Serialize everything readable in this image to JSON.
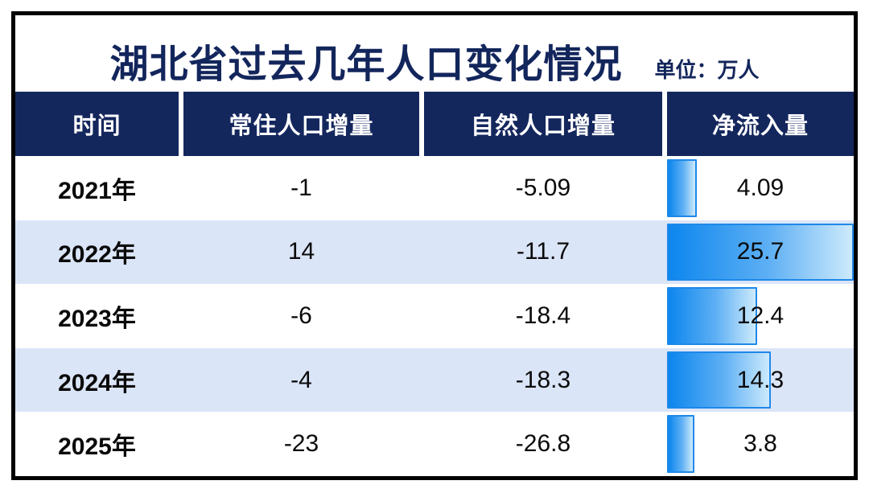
{
  "header": {
    "title": "湖北省过去几年人口变化情况",
    "unit_label": "单位：万人"
  },
  "table": {
    "columns": [
      "时间",
      "常住人口增量",
      "自然人口增量",
      "净流入量"
    ],
    "rows": [
      {
        "year": "2021年",
        "resident": "-1",
        "natural": "-5.09",
        "net": "4.09",
        "net_value": 4.09
      },
      {
        "year": "2022年",
        "resident": "14",
        "natural": "-11.7",
        "net": "25.7",
        "net_value": 25.7
      },
      {
        "year": "2023年",
        "resident": "-6",
        "natural": "-18.4",
        "net": "12.4",
        "net_value": 12.4
      },
      {
        "year": "2024年",
        "resident": "-4",
        "natural": "-18.3",
        "net": "14.3",
        "net_value": 14.3
      },
      {
        "year": "2025年",
        "resident": "-23",
        "natural": "-26.8",
        "net": "3.8",
        "net_value": 3.8
      }
    ]
  },
  "chart_data": {
    "type": "table",
    "title": "湖北省过去几年人口变化情况",
    "unit": "万人",
    "categories": [
      "2021年",
      "2022年",
      "2023年",
      "2024年",
      "2025年"
    ],
    "series": [
      {
        "name": "常住人口增量",
        "values": [
          -1,
          14,
          -6,
          -4,
          -23
        ]
      },
      {
        "name": "自然人口增量",
        "values": [
          -5.09,
          -11.7,
          -18.4,
          -18.3,
          -26.8
        ]
      },
      {
        "name": "净流入量",
        "values": [
          4.09,
          25.7,
          12.4,
          14.3,
          3.8
        ]
      }
    ],
    "bar_column": "净流入量",
    "bar_scale_max": 25.7,
    "layout": "data bars only in last column, left-aligned, scaled to max value"
  },
  "colors": {
    "navy": "#14275d",
    "title_text": "#13265c",
    "row_alt": "#dbe5f8",
    "bar_border": "#1e88e8",
    "bar_gradient_start": "#0c86ee",
    "bar_gradient_end": "#cdeafc",
    "outer_border": "#000000"
  }
}
